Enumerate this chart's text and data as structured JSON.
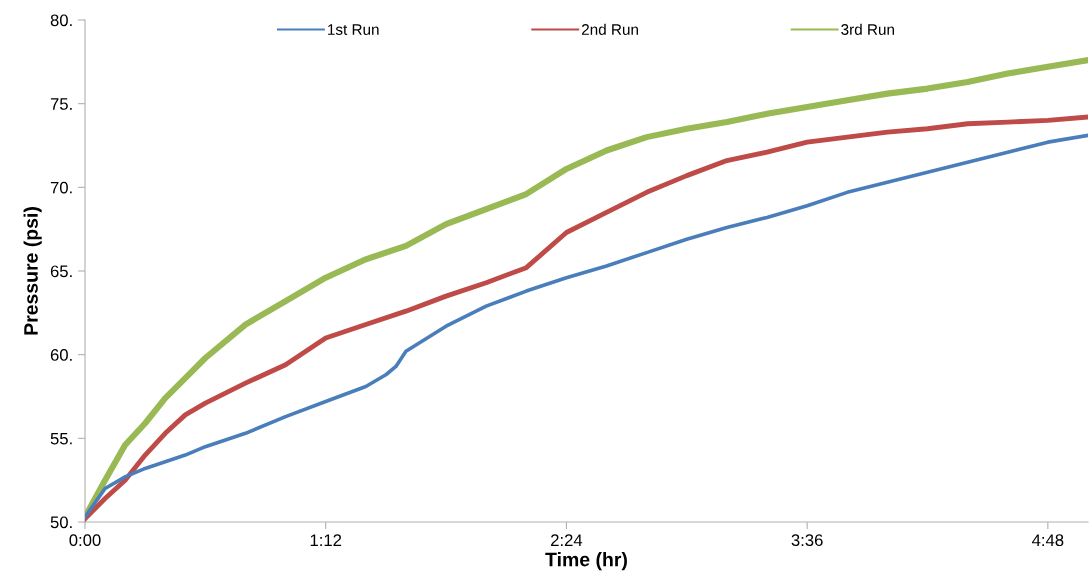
{
  "chart_data": {
    "type": "line",
    "xlabel": "Time (hr)",
    "ylabel": "Pressure (psi)",
    "xlim": [
      0,
      5.0
    ],
    "ylim": [
      50,
      80
    ],
    "xticks": [
      {
        "value": 0,
        "label": "0:00"
      },
      {
        "value": 1.2,
        "label": "1:12"
      },
      {
        "value": 2.4,
        "label": "2:24"
      },
      {
        "value": 3.6,
        "label": "3:36"
      },
      {
        "value": 4.8,
        "label": "4:48"
      }
    ],
    "yticks": [
      {
        "value": 50,
        "label": "50."
      },
      {
        "value": 55,
        "label": "55."
      },
      {
        "value": 60,
        "label": "60."
      },
      {
        "value": 65,
        "label": "65."
      },
      {
        "value": 70,
        "label": "70."
      },
      {
        "value": 75,
        "label": "75."
      },
      {
        "value": 80,
        "label": "80."
      }
    ],
    "grid": false,
    "legend": "top",
    "marker": "none",
    "line_style": "solid",
    "series": [
      {
        "name": "1st Run",
        "color": "#4a7ebb",
        "x": [
          0,
          0.1,
          0.2,
          0.3,
          0.4,
          0.5,
          0.6,
          0.8,
          1.0,
          1.2,
          1.4,
          1.5,
          1.55,
          1.6,
          1.8,
          2.0,
          2.2,
          2.4,
          2.6,
          2.8,
          3.0,
          3.2,
          3.4,
          3.6,
          3.8,
          4.0,
          4.2,
          4.4,
          4.6,
          4.8,
          5.0
        ],
        "values": [
          50.3,
          52.0,
          52.7,
          53.2,
          53.6,
          54.0,
          54.5,
          55.3,
          56.3,
          57.2,
          58.1,
          58.8,
          59.3,
          60.2,
          61.7,
          62.9,
          63.8,
          64.6,
          65.3,
          66.1,
          66.9,
          67.6,
          68.2,
          68.9,
          69.7,
          70.3,
          70.9,
          71.5,
          72.1,
          72.7,
          73.1
        ]
      },
      {
        "name": "2nd Run",
        "color": "#be4b48",
        "x": [
          0,
          0.1,
          0.2,
          0.3,
          0.4,
          0.5,
          0.6,
          0.8,
          1.0,
          1.2,
          1.4,
          1.6,
          1.8,
          2.0,
          2.2,
          2.4,
          2.6,
          2.8,
          3.0,
          3.2,
          3.4,
          3.6,
          3.8,
          4.0,
          4.2,
          4.4,
          4.6,
          4.8,
          5.0
        ],
        "values": [
          50.2,
          51.4,
          52.5,
          54.0,
          55.3,
          56.4,
          57.1,
          58.3,
          59.4,
          61.0,
          61.8,
          62.6,
          63.5,
          64.3,
          65.2,
          67.3,
          68.5,
          69.7,
          70.7,
          71.6,
          72.1,
          72.7,
          73.0,
          73.3,
          73.5,
          73.8,
          73.9,
          74.0,
          74.2
        ]
      },
      {
        "name": "3rd Run",
        "color": "#98b954",
        "x": [
          0,
          0.1,
          0.2,
          0.3,
          0.4,
          0.5,
          0.6,
          0.8,
          1.0,
          1.2,
          1.4,
          1.6,
          1.8,
          2.0,
          2.2,
          2.4,
          2.6,
          2.8,
          3.0,
          3.2,
          3.4,
          3.6,
          3.8,
          4.0,
          4.2,
          4.4,
          4.6,
          4.8,
          5.0
        ],
        "values": [
          50.3,
          52.5,
          54.6,
          55.9,
          57.4,
          58.6,
          59.8,
          61.8,
          63.2,
          64.6,
          65.7,
          66.5,
          67.8,
          68.7,
          69.6,
          71.1,
          72.2,
          73.0,
          73.5,
          73.9,
          74.4,
          74.8,
          75.2,
          75.6,
          75.9,
          76.3,
          76.8,
          77.2,
          77.6
        ]
      }
    ]
  }
}
